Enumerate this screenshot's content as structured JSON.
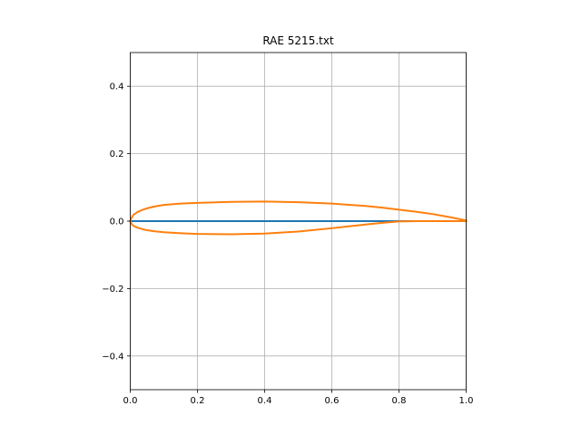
{
  "chart_data": {
    "type": "line",
    "title": "RAE 5215.txt",
    "xlabel": "",
    "ylabel": "",
    "xlim": [
      0.0,
      1.0
    ],
    "ylim": [
      -0.5,
      0.5
    ],
    "aspect": "equal",
    "grid": true,
    "xticks": [
      "0.0",
      "0.2",
      "0.4",
      "0.6",
      "0.8",
      "1.0"
    ],
    "yticks": [
      "−0.4",
      "−0.2",
      "0.0",
      "0.2",
      "0.4"
    ],
    "xtick_values": [
      0.0,
      0.2,
      0.4,
      0.6,
      0.8,
      1.0
    ],
    "ytick_values": [
      -0.4,
      -0.2,
      0.0,
      0.2,
      0.4
    ],
    "colors": {
      "series1": "#1f77b4",
      "series2": "#ff7f0e",
      "grid": "#b0b0b0"
    },
    "series": [
      {
        "x": [
          0.0,
          1.0
        ],
        "y": [
          0.0,
          0.0
        ]
      },
      {
        "x": [
          1.0,
          0.95,
          0.9,
          0.85,
          0.8,
          0.75,
          0.7,
          0.6,
          0.5,
          0.4,
          0.3,
          0.2,
          0.15,
          0.1,
          0.07,
          0.05,
          0.03,
          0.02,
          0.01,
          0.005,
          0.0,
          0.005,
          0.01,
          0.02,
          0.03,
          0.05,
          0.07,
          0.1,
          0.15,
          0.2,
          0.3,
          0.4,
          0.5,
          0.6,
          0.7,
          0.75,
          0.8,
          0.85,
          0.9,
          0.95,
          1.0
        ],
        "y": [
          0.002,
          0.012,
          0.021,
          0.028,
          0.034,
          0.04,
          0.045,
          0.052,
          0.056,
          0.058,
          0.057,
          0.054,
          0.052,
          0.048,
          0.043,
          0.038,
          0.031,
          0.026,
          0.019,
          0.012,
          0.0,
          -0.01,
          -0.014,
          -0.019,
          -0.022,
          -0.027,
          -0.03,
          -0.033,
          -0.036,
          -0.038,
          -0.039,
          -0.037,
          -0.031,
          -0.021,
          -0.01,
          -0.005,
          -0.001,
          0.0,
          0.0,
          0.0,
          0.0
        ]
      }
    ]
  }
}
